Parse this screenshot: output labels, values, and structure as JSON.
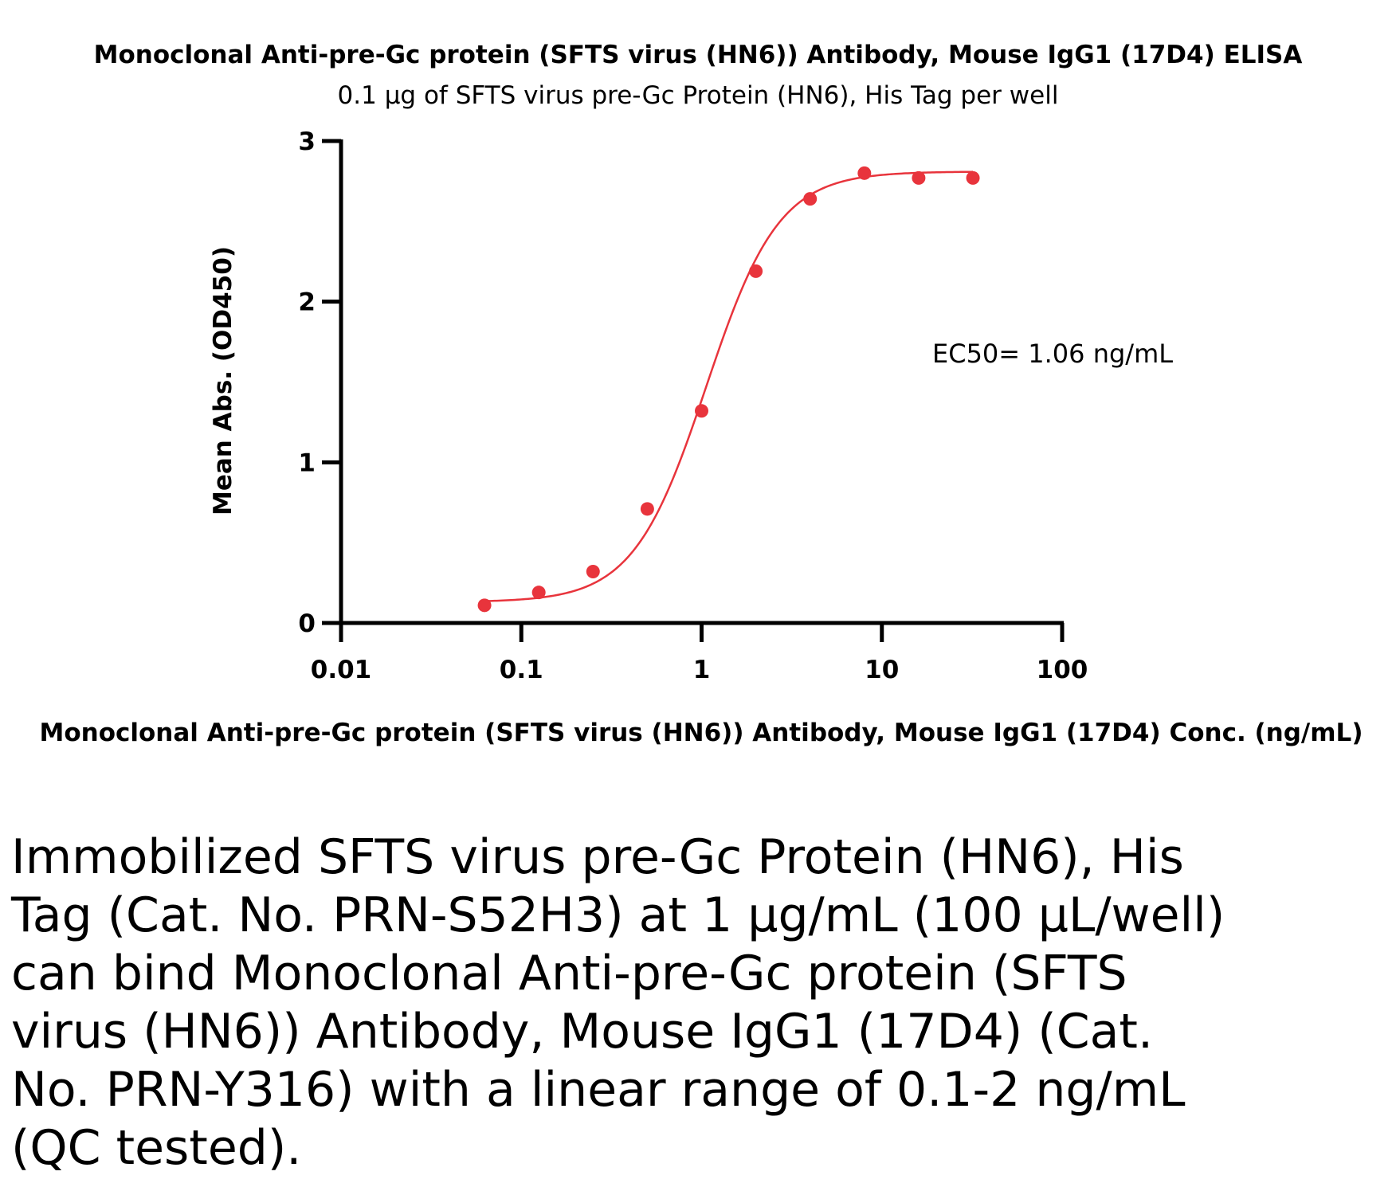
{
  "chart_data": {
    "type": "scatter",
    "title": "Monoclonal Anti-pre-Gc protein (SFTS virus (HN6)) Antibody, Mouse IgG1 (17D4) ELISA",
    "subtitle": "0.1 µg of SFTS virus pre-Gc Protein (HN6), His Tag per well",
    "xlabel": "Monoclonal Anti-pre-Gc protein (SFTS virus (HN6)) Antibody, Mouse IgG1 (17D4) Conc. (ng/mL)",
    "ylabel": "Mean Abs. (OD450)",
    "x_scale": "log",
    "xlim": [
      0.01,
      100
    ],
    "ylim": [
      0,
      3
    ],
    "x_ticks": [
      "0.01",
      "0.1",
      "1",
      "10",
      "100"
    ],
    "y_ticks": [
      "0",
      "1",
      "2",
      "3"
    ],
    "grid": false,
    "color": "#e8343c",
    "series": [
      {
        "x": [
          0.0625,
          0.125,
          0.25,
          0.5,
          1,
          2,
          4,
          8,
          16,
          32
        ],
        "y": [
          0.11,
          0.19,
          0.32,
          0.71,
          1.32,
          2.19,
          2.64,
          2.8,
          2.77,
          2.77
        ]
      }
    ],
    "annotations": [
      "EC50= 1.06 ng/mL"
    ],
    "curve_fit": {
      "bottom": 0.13,
      "top": 2.81,
      "ec50": 1.06,
      "hill": 2.15,
      "x_range": [
        0.0625,
        32
      ]
    }
  },
  "caption": {
    "lines": [
      "Immobilized SFTS virus pre-Gc Protein (HN6), His",
      "Tag (Cat. No. PRN-S52H3) at 1 µg/mL (100 µL/well)",
      "can bind Monoclonal Anti-pre-Gc protein (SFTS",
      "virus (HN6)) Antibody, Mouse IgG1 (17D4) (Cat.",
      "No. PRN-Y316) with a linear range of 0.1-2 ng/mL",
      "(QC tested)."
    ]
  }
}
